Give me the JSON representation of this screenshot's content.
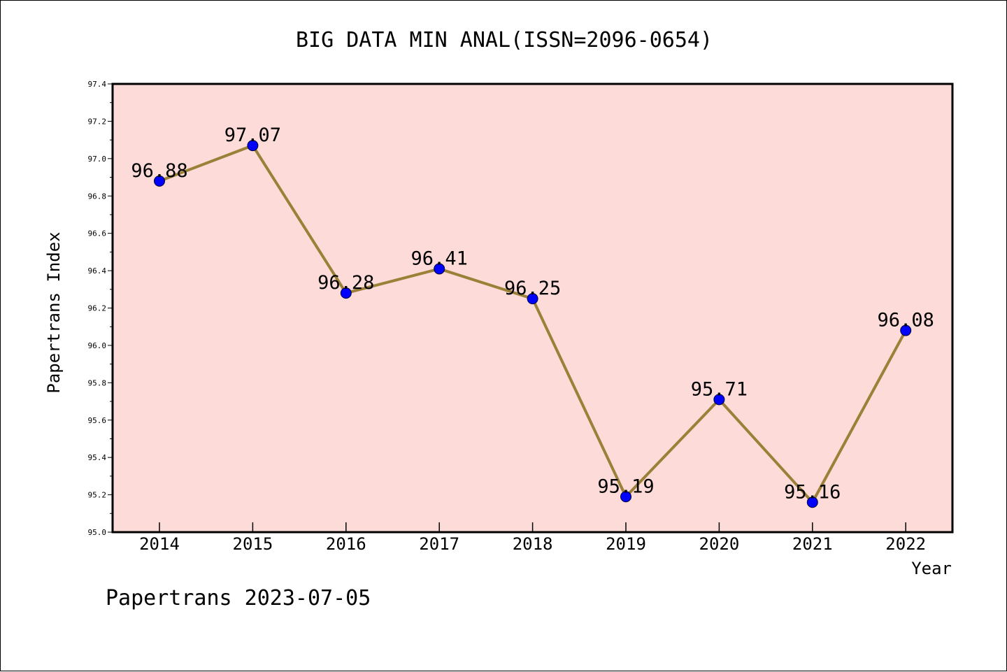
{
  "chart_data": {
    "type": "line",
    "title": "BIG DATA MIN ANAL(ISSN=2096-0654)",
    "xlabel": "Year",
    "ylabel": "Papertrans Index",
    "categories": [
      "2014",
      "2015",
      "2016",
      "2017",
      "2018",
      "2019",
      "2020",
      "2021",
      "2022"
    ],
    "series": [
      {
        "values": [
          96.88,
          97.07,
          96.28,
          96.41,
          96.25,
          95.19,
          95.71,
          95.16,
          96.08
        ],
        "labels": [
          "96.88",
          "97.07",
          "96.28",
          "96.41",
          "96.25",
          "95.19",
          "95.71",
          "95.16",
          "96.08"
        ]
      }
    ],
    "ylim": [
      95.0,
      97.4
    ],
    "y_ticks": [
      "95.0",
      "95.2",
      "95.4",
      "95.6",
      "95.8",
      "96.0",
      "96.2",
      "96.4",
      "96.6",
      "96.8",
      "97.0",
      "97.2",
      "97.4"
    ],
    "grid": false,
    "colors": {
      "plot_background": "#fddbd9",
      "line": "#9a8137",
      "marker": "#0000ff"
    }
  },
  "footer": "Papertrans 2023-07-05"
}
